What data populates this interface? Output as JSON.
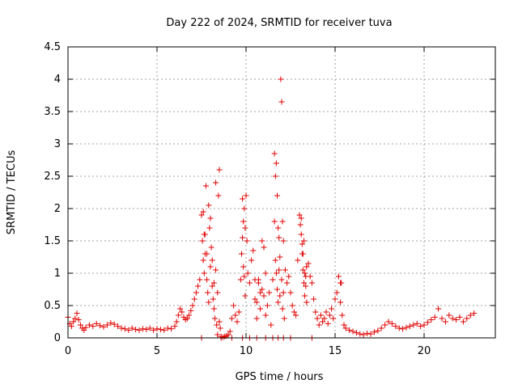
{
  "chart_data": {
    "type": "scatter",
    "title": "Day 222 of 2024, SRMTID for receiver tuva",
    "xlabel": "GPS time / hours",
    "ylabel": "SRMTID / TECUs",
    "xlim": [
      0,
      24
    ],
    "ylim": [
      0,
      4.5
    ],
    "x_ticks": [
      0,
      5,
      10,
      15,
      20
    ],
    "x_tick_labels": [
      "0",
      "5",
      "10",
      "15",
      "20"
    ],
    "y_ticks": [
      0,
      0.5,
      1,
      1.5,
      2,
      2.5,
      3,
      3.5,
      4,
      4.5
    ],
    "y_tick_labels": [
      "0",
      "0.5",
      "1",
      "1.5",
      "2",
      "2.5",
      "3",
      "3.5",
      "4",
      "4.5"
    ],
    "grid": true,
    "marker": "+",
    "series": [
      {
        "name": "SRMTID",
        "color": "#e00000",
        "x": [
          0.0,
          0.1,
          0.2,
          0.3,
          0.4,
          0.5,
          0.6,
          0.7,
          0.8,
          0.9,
          1.0,
          1.2,
          1.4,
          1.6,
          1.8,
          2.0,
          2.2,
          2.4,
          2.6,
          2.8,
          3.0,
          3.2,
          3.4,
          3.6,
          3.8,
          4.0,
          4.2,
          4.4,
          4.6,
          4.8,
          5.0,
          5.2,
          5.4,
          5.6,
          5.8,
          6.0,
          6.1,
          6.2,
          6.3,
          6.4,
          6.5,
          6.6,
          6.7,
          6.8,
          6.9,
          7.0,
          7.1,
          7.2,
          7.3,
          7.4,
          7.5,
          7.55,
          7.6,
          7.65,
          7.7,
          7.75,
          7.8,
          7.85,
          7.9,
          7.95,
          8.0,
          8.05,
          8.1,
          8.15,
          8.2,
          8.25,
          8.3,
          8.35,
          8.4,
          8.45,
          8.5,
          8.55,
          8.6,
          8.7,
          8.8,
          8.9,
          9.0,
          9.1,
          9.2,
          9.3,
          9.4,
          9.5,
          9.6,
          9.7,
          9.75,
          9.8,
          9.85,
          9.9,
          9.95,
          10.0,
          10.05,
          10.1,
          10.2,
          10.3,
          10.4,
          10.5,
          10.6,
          10.7,
          10.8,
          10.9,
          11.0,
          11.1,
          11.2,
          11.3,
          11.4,
          11.5,
          11.6,
          11.65,
          11.7,
          11.75,
          11.8,
          11.85,
          11.9,
          11.95,
          12.0,
          12.05,
          12.1,
          12.2,
          12.3,
          12.4,
          12.5,
          12.6,
          12.7,
          12.8,
          12.9,
          13.0,
          13.05,
          13.1,
          13.15,
          13.2,
          13.25,
          13.3,
          13.35,
          13.4,
          13.5,
          13.6,
          13.7,
          13.8,
          13.9,
          14.0,
          14.1,
          14.2,
          14.3,
          14.4,
          14.5,
          14.6,
          14.7,
          14.8,
          14.9,
          15.0,
          15.1,
          15.2,
          15.3,
          15.4,
          15.5,
          15.6,
          15.8,
          16.0,
          16.2,
          16.4,
          16.6,
          16.8,
          17.0,
          17.2,
          17.4,
          17.6,
          17.8,
          18.0,
          18.2,
          18.4,
          18.6,
          18.8,
          19.0,
          19.2,
          19.4,
          19.6,
          19.8,
          20.0,
          20.2,
          20.4,
          20.6,
          20.8,
          21.0,
          21.2,
          21.4,
          21.6,
          21.8,
          22.0,
          22.2,
          22.4,
          22.6,
          22.8,
          7.6,
          7.65,
          7.7,
          7.8,
          7.9,
          8.0,
          8.1,
          8.2,
          8.3,
          8.4,
          8.5,
          9.8,
          9.85,
          9.9,
          9.95,
          10.5,
          10.6,
          10.7,
          10.8,
          10.9,
          11.0,
          11.1,
          11.6,
          11.65,
          11.7,
          11.75,
          11.8,
          11.85,
          11.9,
          12.0,
          12.05,
          12.1,
          12.15,
          13.1,
          13.15,
          13.2,
          13.25,
          13.3,
          13.35,
          13.4,
          15.3,
          15.35,
          7.5,
          8.6,
          9.2,
          9.8,
          10.2,
          10.6,
          11.1,
          11.5,
          11.8,
          12.1,
          12.5,
          13.7
        ],
        "y": [
          0.32,
          0.22,
          0.18,
          0.25,
          0.3,
          0.38,
          0.28,
          0.2,
          0.15,
          0.12,
          0.16,
          0.2,
          0.18,
          0.22,
          0.19,
          0.17,
          0.2,
          0.23,
          0.21,
          0.18,
          0.15,
          0.14,
          0.12,
          0.15,
          0.13,
          0.12,
          0.14,
          0.13,
          0.15,
          0.12,
          0.14,
          0.13,
          0.12,
          0.15,
          0.14,
          0.18,
          0.25,
          0.35,
          0.45,
          0.4,
          0.32,
          0.28,
          0.3,
          0.35,
          0.42,
          0.5,
          0.6,
          0.7,
          0.8,
          0.9,
          1.9,
          1.5,
          1.2,
          1.0,
          1.6,
          2.35,
          1.3,
          0.7,
          2.05,
          1.7,
          1.85,
          1.4,
          1.2,
          0.6,
          0.85,
          0.3,
          2.4,
          0.2,
          0.05,
          2.2,
          2.6,
          0.15,
          0.02,
          0.01,
          0.02,
          0.03,
          0.05,
          0.1,
          0.3,
          0.5,
          0.35,
          0.25,
          0.4,
          0.9,
          1.3,
          2.15,
          1.8,
          2.0,
          1.7,
          2.2,
          1.5,
          1.0,
          0.85,
          1.2,
          1.35,
          0.6,
          0.3,
          0.9,
          0.7,
          1.5,
          1.4,
          1.0,
          0.5,
          0.7,
          0.2,
          0.9,
          2.85,
          2.5,
          2.7,
          2.2,
          1.7,
          1.55,
          1.25,
          4.0,
          3.65,
          1.8,
          1.5,
          1.05,
          0.85,
          0.95,
          0.7,
          0.5,
          0.4,
          0.35,
          1.2,
          1.9,
          1.75,
          1.85,
          1.45,
          1.3,
          1.5,
          1.0,
          0.8,
          1.1,
          1.15,
          0.95,
          0.85,
          0.6,
          0.4,
          0.3,
          0.2,
          0.35,
          0.25,
          0.3,
          0.4,
          0.22,
          0.35,
          0.45,
          0.3,
          0.6,
          0.7,
          0.95,
          0.85,
          0.35,
          0.2,
          0.15,
          0.12,
          0.1,
          0.08,
          0.06,
          0.05,
          0.07,
          0.06,
          0.09,
          0.11,
          0.15,
          0.2,
          0.25,
          0.22,
          0.18,
          0.15,
          0.14,
          0.16,
          0.18,
          0.2,
          0.22,
          0.18,
          0.2,
          0.24,
          0.28,
          0.32,
          0.45,
          0.3,
          0.25,
          0.35,
          0.3,
          0.28,
          0.32,
          0.25,
          0.3,
          0.35,
          0.38,
          1.95,
          1.6,
          1.3,
          0.9,
          0.55,
          1.1,
          0.8,
          0.45,
          1.05,
          0.7,
          0.25,
          1.55,
          1.1,
          0.95,
          0.65,
          0.9,
          0.55,
          0.85,
          0.45,
          0.75,
          0.65,
          0.35,
          1.8,
          1.2,
          1.0,
          0.75,
          0.55,
          1.05,
          0.65,
          0.9,
          0.45,
          0.7,
          0.3,
          1.6,
          1.3,
          1.05,
          0.85,
          0.65,
          0.95,
          0.55,
          0.55,
          0.85,
          0,
          0,
          0,
          0,
          0,
          0,
          0,
          0,
          0,
          0,
          0,
          0
        ]
      }
    ]
  }
}
